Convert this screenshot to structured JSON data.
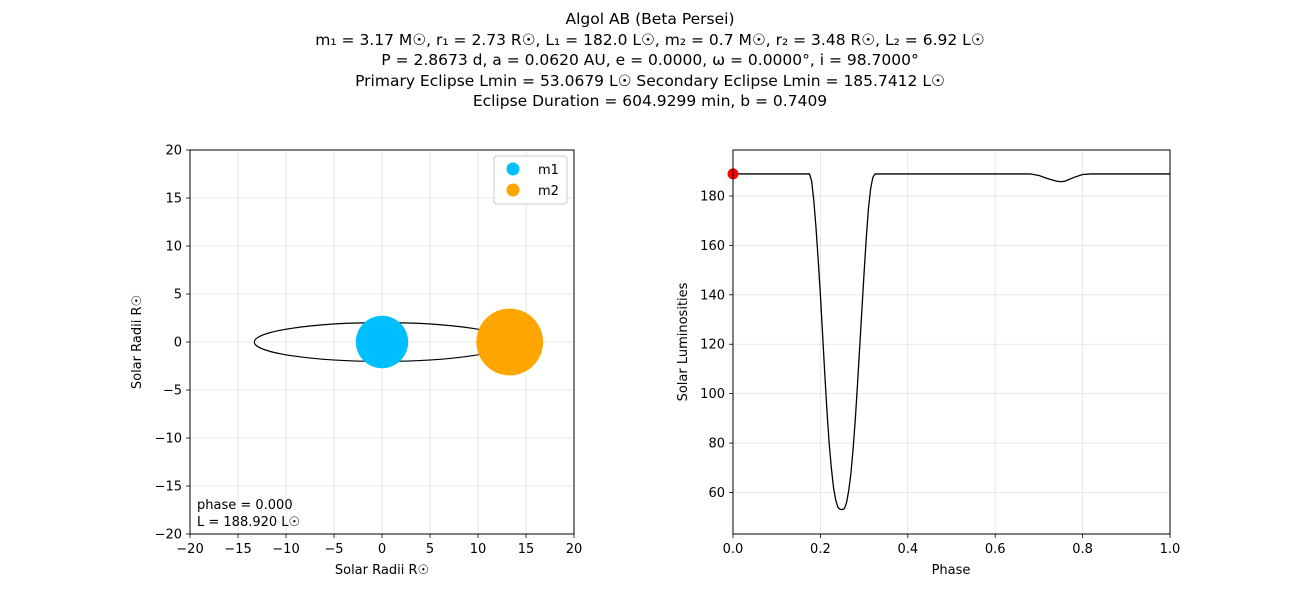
{
  "header": {
    "title": "Algol AB (Beta Persei)",
    "line2": "m₁ = 3.17 M☉, r₁ = 2.73 R☉, L₁ = 182.0 L☉,    m₂ = 0.7 M☉, r₂ = 3.48 R☉, L₂ = 6.92 L☉",
    "line3": "P = 2.8673 d, a = 0.0620 AU, e = 0.0000, ω = 0.0000°, i = 98.7000°",
    "line4": "Primary Eclipse Lmin = 53.0679 L☉    Secondary Eclipse Lmin = 185.7412 L☉",
    "line5": "Eclipse Duration = 604.9299 min, b = 0.7409"
  },
  "colors": {
    "m1": "#00BFFF",
    "m2": "#FFA500",
    "marker": "#FF0000",
    "curve": "#000000"
  },
  "chart_data": [
    {
      "type": "scatter",
      "xlabel": "Solar Radii R☉",
      "ylabel": "Solar Radii R☉",
      "xlim": [
        -20,
        20
      ],
      "ylim": [
        -20,
        20
      ],
      "xticks": [
        "−20",
        "−15",
        "−10",
        "−5",
        "0",
        "5",
        "10",
        "15",
        "20"
      ],
      "yticks": [
        "−20",
        "−15",
        "−10",
        "−5",
        "0",
        "5",
        "10",
        "15",
        "20"
      ],
      "grid": true,
      "legend_position": "top-right",
      "legend": [
        "m1",
        "m2"
      ],
      "orbit": {
        "center_x": 0,
        "center_y": 0,
        "semi_major": 13.3,
        "semi_minor": 2.02
      },
      "bodies": [
        {
          "name": "m1",
          "x": 0,
          "y": 0,
          "radius": 2.73
        },
        {
          "name": "m2",
          "x": 13.3,
          "y": 0,
          "radius": 3.48
        }
      ],
      "annotations": [
        "phase = 0.000",
        "L = 188.920 L☉"
      ]
    },
    {
      "type": "line",
      "xlabel": "Phase",
      "ylabel": "Solar Luminosities",
      "xlim": [
        0,
        1
      ],
      "ylim": [
        43.2,
        198.6
      ],
      "xticks": [
        "0.0",
        "0.2",
        "0.4",
        "0.6",
        "0.8",
        "1.0"
      ],
      "yticks": [
        "60",
        "80",
        "100",
        "120",
        "140",
        "160",
        "180"
      ],
      "grid": true,
      "current_point": {
        "x": 0.0,
        "y": 188.92
      },
      "series": [
        {
          "x": [
            0,
            0.175,
            0.18,
            0.185,
            0.19,
            0.195,
            0.2,
            0.205,
            0.21,
            0.215,
            0.22,
            0.225,
            0.23,
            0.235,
            0.24,
            0.245,
            0.25,
            0.255,
            0.26,
            0.265,
            0.27,
            0.275,
            0.28,
            0.285,
            0.29,
            0.295,
            0.3,
            0.305,
            0.31,
            0.315,
            0.32,
            0.325,
            0.68,
            0.7,
            0.72,
            0.74,
            0.75,
            0.76,
            0.78,
            0.8,
            0.82,
            1.0
          ],
          "y": [
            188.92,
            188.92,
            186,
            178,
            167,
            154,
            140,
            124,
            108,
            93,
            80,
            70,
            62,
            57,
            54,
            53.2,
            53.07,
            53.5,
            56,
            61,
            68,
            78,
            90,
            104,
            119,
            134,
            149,
            163,
            175,
            183,
            187.5,
            188.92,
            188.92,
            188.3,
            187,
            186,
            185.74,
            186,
            187.5,
            188.7,
            188.92,
            188.92
          ]
        }
      ]
    }
  ]
}
